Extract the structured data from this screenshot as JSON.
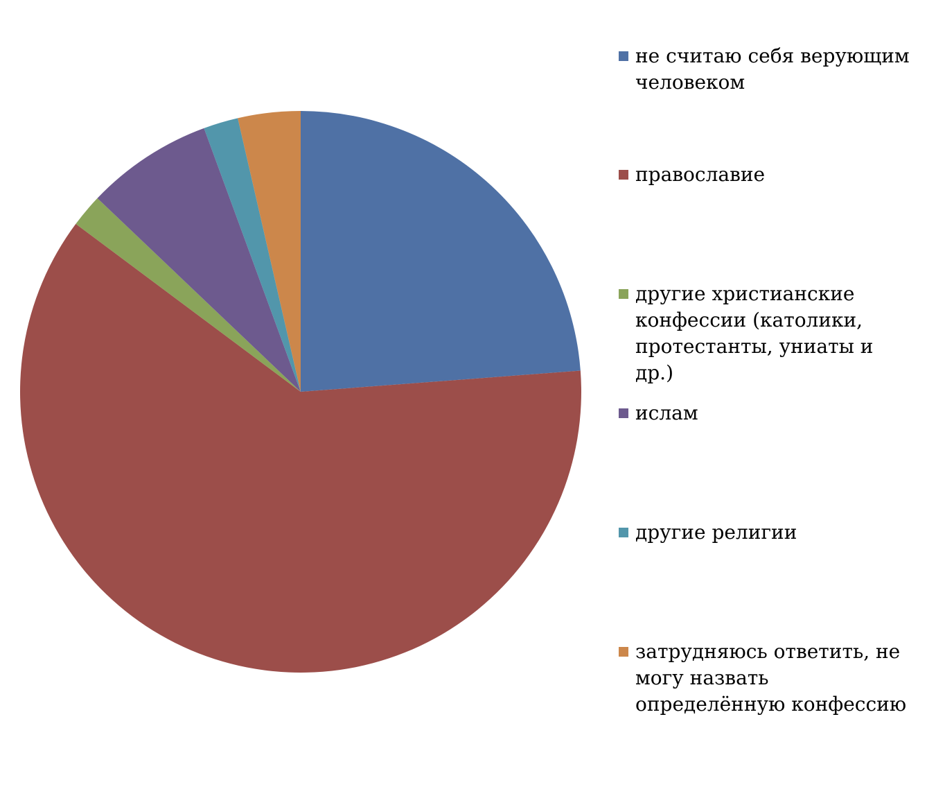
{
  "chart_data": {
    "type": "pie",
    "categories": [
      "не считаю себя верующим человеком",
      "православие",
      "другие христианские конфессии (католики, протестанты, униаты и др.)",
      "ислам",
      "другие религии",
      "затрудняюсь ответить, не могу назвать определённую конфессию"
    ],
    "values": [
      23.8,
      61.4,
      1.9,
      7.3,
      2.0,
      3.6
    ],
    "colors": [
      "#4f71a5",
      "#9c4e4a",
      "#8aa45a",
      "#6d5a8e",
      "#5296ab",
      "#cc874b"
    ],
    "legend": "right"
  }
}
